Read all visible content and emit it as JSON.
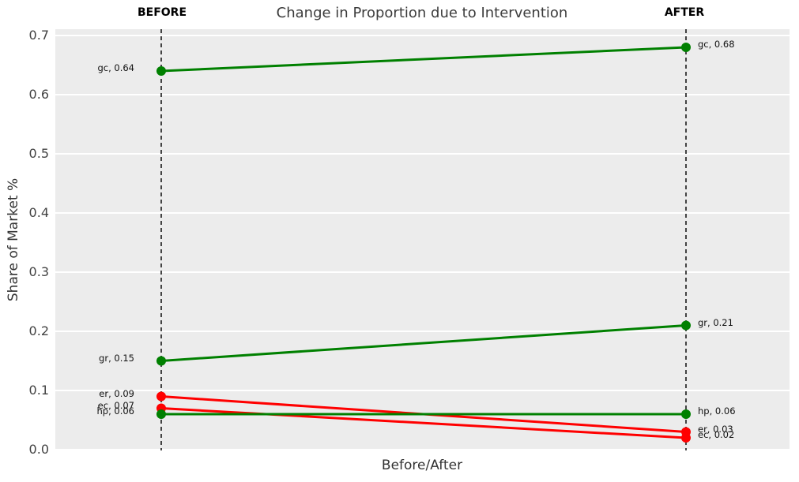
{
  "chart_data": {
    "type": "line",
    "subtype": "slope-chart",
    "title": "Change in Proportion due to Intervention",
    "xlabel": "Before/After",
    "ylabel": "Share of Market %",
    "column_headers": {
      "before": "BEFORE",
      "after": "AFTER"
    },
    "ylim": [
      0.0,
      0.7
    ],
    "yticks": [
      {
        "value": 0.0,
        "label": "0.0"
      },
      {
        "value": 0.1,
        "label": "0.1"
      },
      {
        "value": 0.2,
        "label": "0.2"
      },
      {
        "value": 0.3,
        "label": "0.3"
      },
      {
        "value": 0.4,
        "label": "0.4"
      },
      {
        "value": 0.5,
        "label": "0.5"
      },
      {
        "value": 0.6,
        "label": "0.6"
      },
      {
        "value": 0.7,
        "label": "0.7"
      }
    ],
    "x_categories": [
      "BEFORE",
      "AFTER"
    ],
    "grid": true,
    "legend": false,
    "series": [
      {
        "name": "gc",
        "before": 0.64,
        "after": 0.68,
        "color": "#008000",
        "label_before": "gc, 0.64",
        "label_after": "gc, 0.68"
      },
      {
        "name": "gr",
        "before": 0.15,
        "after": 0.21,
        "color": "#008000",
        "label_before": "gr, 0.15",
        "label_after": "gr, 0.21"
      },
      {
        "name": "er",
        "before": 0.09,
        "after": 0.03,
        "color": "#ff0000",
        "label_before": "er, 0.09",
        "label_after": "er, 0.03"
      },
      {
        "name": "ec",
        "before": 0.07,
        "after": 0.02,
        "color": "#ff0000",
        "label_before": "ec, 0.07",
        "label_after": "ec, 0.02"
      },
      {
        "name": "hp",
        "before": 0.06,
        "after": 0.06,
        "color": "#008000",
        "label_before": "hp, 0.06",
        "label_after": "hp, 0.06"
      }
    ],
    "colors": {
      "increase": "#008000",
      "decrease": "#ff0000",
      "panel_background": "#ececec",
      "gridline": "#ffffff",
      "marker_line": "#1a1a1a",
      "title_text": "#3c3c3c",
      "tick_text": "#424242"
    }
  }
}
